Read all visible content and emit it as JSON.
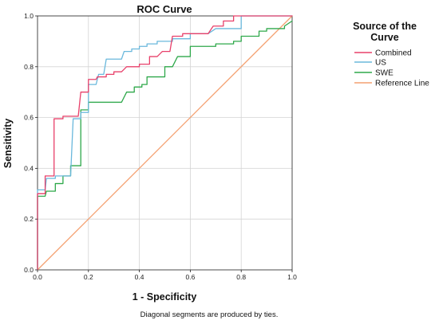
{
  "chart_data": {
    "type": "line",
    "title": "ROC Curve",
    "xlabel": "1 - Specificity",
    "ylabel": "Sensitivity",
    "xlim": [
      0,
      1
    ],
    "ylim": [
      0,
      1
    ],
    "x_ticks": [
      "0.0",
      "0.2",
      "0.4",
      "0.6",
      "0.8",
      "1.0"
    ],
    "y_ticks": [
      "0.0",
      "0.2",
      "0.4",
      "0.6",
      "0.8",
      "1.0"
    ],
    "grid": true,
    "legend": {
      "title": "Source of the Curve",
      "title_lines": [
        "Source of the",
        "Curve"
      ],
      "placement": "right"
    },
    "footnote": "Diagonal segments are produced by ties.",
    "series": [
      {
        "name": "Combined",
        "color": "#e8406a",
        "points": [
          [
            0,
            0
          ],
          [
            0,
            0.3
          ],
          [
            0.03,
            0.3
          ],
          [
            0.03,
            0.37
          ],
          [
            0.065,
            0.37
          ],
          [
            0.065,
            0.595
          ],
          [
            0.1,
            0.595
          ],
          [
            0.1,
            0.605
          ],
          [
            0.16,
            0.605
          ],
          [
            0.17,
            0.7
          ],
          [
            0.2,
            0.7
          ],
          [
            0.2,
            0.75
          ],
          [
            0.23,
            0.75
          ],
          [
            0.235,
            0.76
          ],
          [
            0.27,
            0.76
          ],
          [
            0.27,
            0.77
          ],
          [
            0.3,
            0.77
          ],
          [
            0.3,
            0.78
          ],
          [
            0.33,
            0.78
          ],
          [
            0.35,
            0.8
          ],
          [
            0.4,
            0.8
          ],
          [
            0.4,
            0.81
          ],
          [
            0.44,
            0.81
          ],
          [
            0.44,
            0.84
          ],
          [
            0.47,
            0.84
          ],
          [
            0.49,
            0.86
          ],
          [
            0.52,
            0.86
          ],
          [
            0.53,
            0.92
          ],
          [
            0.57,
            0.92
          ],
          [
            0.57,
            0.93
          ],
          [
            0.67,
            0.93
          ],
          [
            0.69,
            0.96
          ],
          [
            0.73,
            0.96
          ],
          [
            0.73,
            0.98
          ],
          [
            0.77,
            0.98
          ],
          [
            0.77,
            1.0
          ],
          [
            1.0,
            1.0
          ]
        ]
      },
      {
        "name": "US",
        "color": "#6ab8dc",
        "points": [
          [
            0,
            0
          ],
          [
            0,
            0.315
          ],
          [
            0.03,
            0.315
          ],
          [
            0.035,
            0.36
          ],
          [
            0.07,
            0.36
          ],
          [
            0.07,
            0.37
          ],
          [
            0.13,
            0.37
          ],
          [
            0.14,
            0.595
          ],
          [
            0.17,
            0.595
          ],
          [
            0.17,
            0.62
          ],
          [
            0.2,
            0.62
          ],
          [
            0.2,
            0.73
          ],
          [
            0.23,
            0.73
          ],
          [
            0.24,
            0.77
          ],
          [
            0.26,
            0.77
          ],
          [
            0.27,
            0.83
          ],
          [
            0.33,
            0.83
          ],
          [
            0.34,
            0.86
          ],
          [
            0.37,
            0.86
          ],
          [
            0.37,
            0.87
          ],
          [
            0.4,
            0.87
          ],
          [
            0.4,
            0.88
          ],
          [
            0.43,
            0.88
          ],
          [
            0.43,
            0.89
          ],
          [
            0.47,
            0.89
          ],
          [
            0.47,
            0.9
          ],
          [
            0.53,
            0.9
          ],
          [
            0.53,
            0.91
          ],
          [
            0.6,
            0.91
          ],
          [
            0.6,
            0.93
          ],
          [
            0.67,
            0.93
          ],
          [
            0.7,
            0.95
          ],
          [
            0.8,
            0.95
          ],
          [
            0.8,
            1.0
          ],
          [
            1.0,
            1.0
          ]
        ]
      },
      {
        "name": "SWE",
        "color": "#2ea84a",
        "points": [
          [
            0,
            0
          ],
          [
            0,
            0.29
          ],
          [
            0.03,
            0.29
          ],
          [
            0.035,
            0.31
          ],
          [
            0.07,
            0.31
          ],
          [
            0.07,
            0.34
          ],
          [
            0.1,
            0.34
          ],
          [
            0.1,
            0.37
          ],
          [
            0.13,
            0.37
          ],
          [
            0.13,
            0.41
          ],
          [
            0.17,
            0.41
          ],
          [
            0.17,
            0.63
          ],
          [
            0.2,
            0.63
          ],
          [
            0.2,
            0.66
          ],
          [
            0.33,
            0.66
          ],
          [
            0.35,
            0.7
          ],
          [
            0.38,
            0.7
          ],
          [
            0.38,
            0.72
          ],
          [
            0.41,
            0.72
          ],
          [
            0.41,
            0.73
          ],
          [
            0.43,
            0.73
          ],
          [
            0.43,
            0.76
          ],
          [
            0.5,
            0.76
          ],
          [
            0.5,
            0.8
          ],
          [
            0.53,
            0.8
          ],
          [
            0.55,
            0.84
          ],
          [
            0.6,
            0.84
          ],
          [
            0.6,
            0.88
          ],
          [
            0.7,
            0.88
          ],
          [
            0.7,
            0.89
          ],
          [
            0.77,
            0.89
          ],
          [
            0.77,
            0.9
          ],
          [
            0.8,
            0.9
          ],
          [
            0.8,
            0.92
          ],
          [
            0.87,
            0.92
          ],
          [
            0.87,
            0.94
          ],
          [
            0.9,
            0.94
          ],
          [
            0.9,
            0.95
          ],
          [
            0.97,
            0.95
          ],
          [
            0.97,
            0.96
          ],
          [
            1.0,
            0.98
          ]
        ]
      },
      {
        "name": "Reference Line",
        "color": "#f4a070",
        "points": [
          [
            0,
            0
          ],
          [
            1,
            1
          ]
        ]
      }
    ]
  }
}
